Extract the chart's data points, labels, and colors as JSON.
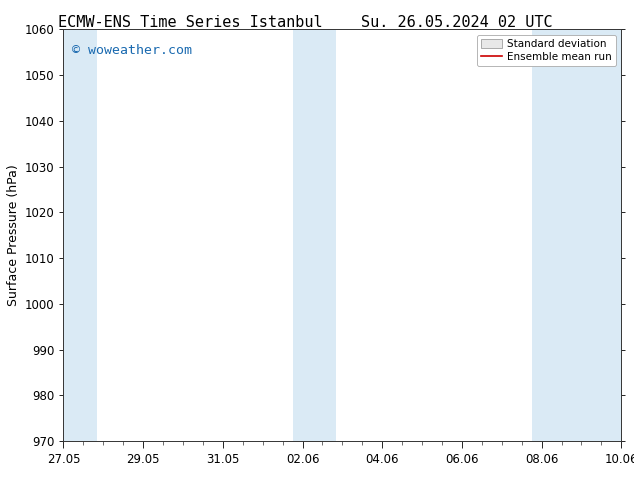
{
  "title_left": "ECMW-ENS Time Series Istanbul",
  "title_right": "Su. 26.05.2024 02 UTC",
  "ylabel": "Surface Pressure (hPa)",
  "ylim": [
    970,
    1060
  ],
  "yticks": [
    970,
    980,
    990,
    1000,
    1010,
    1020,
    1030,
    1040,
    1050,
    1060
  ],
  "xlim_start": 0.0,
  "xlim_end": 14.0,
  "xtick_labels": [
    "27.05",
    "29.05",
    "31.05",
    "02.06",
    "04.06",
    "06.06",
    "08.06",
    "10.06"
  ],
  "xtick_positions": [
    0,
    2,
    4,
    6,
    8,
    10,
    12,
    14
  ],
  "shaded_bands": [
    {
      "x_start": 0.0,
      "x_end": 0.85
    },
    {
      "x_start": 5.75,
      "x_end": 6.85
    },
    {
      "x_start": 11.75,
      "x_end": 14.0
    }
  ],
  "shaded_color": "#daeaf5",
  "background_color": "#ffffff",
  "watermark_text": "© woweather.com",
  "watermark_color": "#1a6ab0",
  "watermark_fontsize": 9.5,
  "legend_std_label": "Standard deviation",
  "legend_mean_label": "Ensemble mean run",
  "legend_std_facecolor": "#e8e8e8",
  "legend_std_edgecolor": "#aaaaaa",
  "legend_mean_color": "#cc0000",
  "title_fontsize": 11,
  "label_fontsize": 9,
  "tick_fontsize": 8.5
}
